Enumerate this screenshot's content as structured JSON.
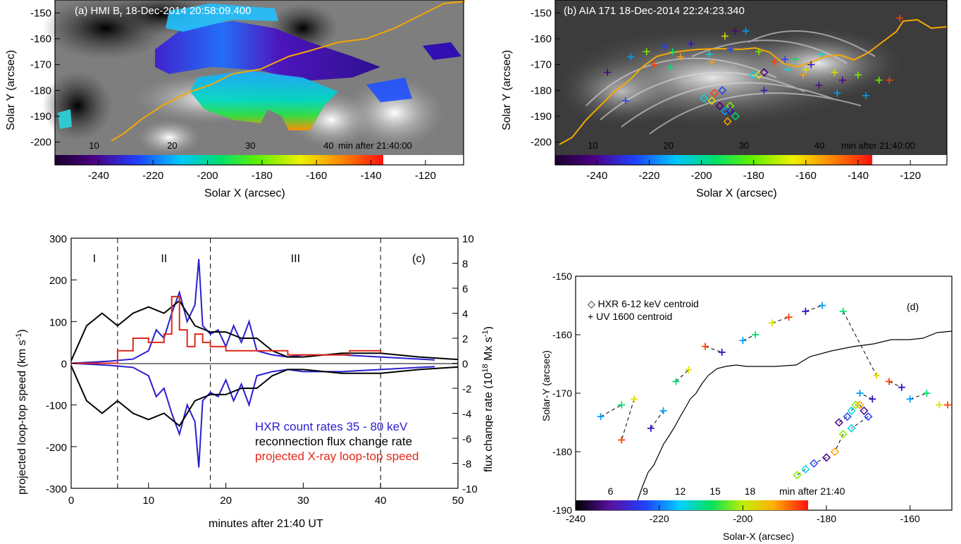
{
  "panel_a": {
    "title": "(a) HMI B",
    "title_sub": "r",
    "title_rest": " 18-Dec-2014 20:58:09.400",
    "xlabel": "Solar X (arcsec)",
    "ylabel": "Solar Y (arcsec)",
    "xticks": [
      "-240",
      "-220",
      "-200",
      "-180",
      "-160",
      "-140",
      "-120"
    ],
    "yticks": [
      "-150",
      "-160",
      "-170",
      "-180",
      "-190",
      "-200"
    ],
    "colorbar_ticks": [
      "10",
      "20",
      "30",
      "40"
    ],
    "colorbar_unit": "min after 21:40:00"
  },
  "panel_b": {
    "title": "(b) AIA 171 18-Dec-2014 22:24:23.340",
    "xlabel": "Solar X (arcsec)",
    "ylabel": "Solar Y (arcsec)",
    "xticks": [
      "-240",
      "-220",
      "-200",
      "-180",
      "-160",
      "-140",
      "-120"
    ],
    "yticks": [
      "-150",
      "-160",
      "-170",
      "-180",
      "-190",
      "-200"
    ],
    "colorbar_ticks": [
      "10",
      "20",
      "30",
      "40"
    ],
    "colorbar_unit": "min after 21:40:00"
  },
  "panel_c": {
    "tag": "(c)",
    "xlabel": "minutes after 21:40 UT",
    "ylabel_left": "projected loop-top speed (km s",
    "ylabel_left_sup": "-1",
    "ylabel_left_end": ")",
    "ylabel_right": "flux change rate (10",
    "ylabel_right_sup1": "18",
    "ylabel_right_mid": " Mx s",
    "ylabel_right_sup2": "-1",
    "ylabel_right_end": ")",
    "xticks": [
      "0",
      "10",
      "20",
      "30",
      "40",
      "50"
    ],
    "yticks_left": [
      "300",
      "200",
      "100",
      "0",
      "-100",
      "-200",
      "-300"
    ],
    "yticks_right": [
      "10",
      "8",
      "6",
      "4",
      "2",
      "0",
      "-2",
      "-4",
      "-6",
      "-8",
      "-10"
    ],
    "phases": [
      "I",
      "II",
      "III"
    ],
    "legend": [
      "HXR count rates 35 - 80 keV",
      "reconnection flux change rate",
      "projected X-ray loop-top speed"
    ]
  },
  "panel_d": {
    "tag": "(d)",
    "xlabel": "Solar-X (arcsec)",
    "ylabel": "Solar-Y (arcsec)",
    "xticks": [
      "-240",
      "-220",
      "-200",
      "-180",
      "-160"
    ],
    "yticks": [
      "-150",
      "-160",
      "-170",
      "-180",
      "-190"
    ],
    "legend": [
      "HXR 6-12 keV centroid",
      "UV 1600 centroid"
    ],
    "colorbar_ticks": [
      "6",
      "9",
      "12",
      "15",
      "18"
    ],
    "colorbar_unit": "min after 21:40"
  },
  "colors": {
    "hxr": "#2b1fd0",
    "flux": "#000000",
    "xray": "#e0281a",
    "boundary": "#f5a800"
  },
  "chart_data": [
    {
      "type": "heatmap",
      "panel": "a",
      "description_values": "HMI magnetogram with timing-colored ribbon overlay",
      "xlim": [
        -256,
        -106
      ],
      "ylim": [
        -205,
        -145
      ],
      "colorbar_range_min": [
        5,
        47
      ]
    },
    {
      "type": "scatter",
      "panel": "b",
      "xlim": [
        -256,
        -106
      ],
      "ylim": [
        -205,
        -145
      ],
      "series": [
        {
          "marker": "plus",
          "x": [
            -236,
            -227,
            -221,
            -218,
            -214,
            -211,
            -208,
            -204,
            -197,
            -191,
            -187,
            -183,
            -178,
            -172,
            -168,
            -164,
            -161,
            -158,
            -154,
            -149,
            -146,
            -137,
            -132,
            -124,
            -229,
            -212,
            -196,
            -176,
            -167,
            -160,
            -155,
            -148,
            -140,
            -128,
            -189
          ],
          "y": [
            -173,
            -167,
            -165,
            -170,
            -163,
            -165,
            -167,
            -162,
            -166,
            -159,
            -157,
            -157,
            -165,
            -169,
            -168,
            -168,
            -174,
            -170,
            -166,
            -173,
            -176,
            -182,
            -176,
            -152,
            -184,
            -171,
            -169,
            -180,
            -172,
            -172,
            -178,
            -181,
            -174,
            -176,
            -164
          ]
        },
        {
          "marker": "diamond",
          "x": [
            -199,
            -196,
            -193,
            -191,
            -189,
            -195,
            -192,
            -187,
            -190,
            -189,
            -180,
            -178,
            -176
          ],
          "y": [
            -183,
            -184,
            -186,
            -188,
            -186,
            -181,
            -180,
            -190,
            -192,
            -188,
            -174,
            -174,
            -173
          ]
        }
      ]
    },
    {
      "type": "line",
      "panel": "c",
      "xlim": [
        0,
        50
      ],
      "ylim_left": [
        -300,
        300
      ],
      "ylim_right": [
        -10,
        10
      ],
      "phase_boundaries": [
        6,
        18,
        40
      ],
      "series": [
        {
          "name": "HXR count rates 35 - 80 keV",
          "x": [
            0,
            5,
            8,
            10,
            11,
            12,
            13,
            14,
            15,
            16,
            16.5,
            17,
            18,
            19,
            20,
            21,
            22,
            23,
            24,
            26,
            28,
            30,
            35,
            40,
            45,
            47
          ],
          "y": [
            0,
            5,
            10,
            30,
            80,
            60,
            120,
            170,
            100,
            140,
            250,
            90,
            70,
            80,
            40,
            90,
            50,
            100,
            30,
            20,
            15,
            20,
            20,
            15,
            10,
            8
          ]
        },
        {
          "name": "reconnection flux change rate",
          "x": [
            0,
            2,
            4,
            6,
            8,
            10,
            12,
            14,
            16,
            18,
            20,
            22,
            24,
            26,
            28,
            30,
            35,
            40,
            45,
            50
          ],
          "y": [
            0.2,
            3,
            4,
            3,
            4,
            4.5,
            4,
            5,
            3,
            2.5,
            2.5,
            2,
            2,
            1,
            0.5,
            0.5,
            0.8,
            0.8,
            0.5,
            0.3
          ]
        },
        {
          "name": "projected X-ray loop-top speed",
          "x": [
            0,
            6,
            8,
            10,
            12,
            13,
            14,
            15,
            16,
            17,
            18,
            19,
            20,
            24,
            28,
            32,
            36,
            40
          ],
          "y": [
            0,
            30,
            60,
            50,
            70,
            160,
            80,
            40,
            70,
            50,
            40,
            40,
            30,
            30,
            20,
            20,
            30,
            25
          ]
        }
      ]
    },
    {
      "type": "scatter",
      "panel": "d",
      "xlim": [
        -240,
        -150
      ],
      "ylim": [
        -190,
        -150
      ],
      "series": [
        {
          "name": "HXR 6-12 keV centroid",
          "marker": "diamond",
          "x": [
            -177,
            -175,
            -174,
            -173,
            -172,
            -171,
            -170,
            -174,
            -176,
            -178,
            -180,
            -183,
            -185,
            -187
          ],
          "y": [
            -175,
            -174,
            -173,
            -172,
            -172,
            -173,
            -174,
            -176,
            -177,
            -180,
            -181,
            -182,
            -183,
            -184
          ]
        },
        {
          "name": "UV 1600 centroid",
          "marker": "plus",
          "x": [
            -234,
            -229,
            -226,
            -229,
            -222,
            -219,
            -216,
            -213,
            -209,
            -205,
            -200,
            -197,
            -193,
            -189,
            -185,
            -181,
            -176,
            -168,
            -165,
            -162,
            -160,
            -156,
            -153,
            -151,
            -169,
            -172
          ],
          "y": [
            -174,
            -172,
            -171,
            -178,
            -176,
            -173,
            -168,
            -166,
            -162,
            -163,
            -161,
            -160,
            -158,
            -157,
            -156,
            -155,
            -156,
            -167,
            -168,
            -169,
            -171,
            -170,
            -172,
            -172,
            -171,
            -170
          ]
        }
      ]
    }
  ]
}
